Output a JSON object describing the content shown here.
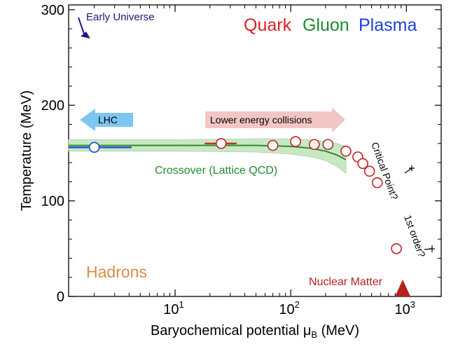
{
  "chart_data": {
    "type": "scatter",
    "title": "",
    "xlabel": "Baryochemical potential",
    "xlabel_symbol": "μ",
    "xlabel_subscript": "B",
    "xlabel_unit": "(MeV)",
    "ylabel": "Temperature (MeV)",
    "xscale": "log",
    "xlim": [
      1.2,
      2000
    ],
    "ylim": [
      0,
      305
    ],
    "x_ticks": [
      {
        "value": 10,
        "base": "10",
        "exp": "1"
      },
      {
        "value": 100,
        "base": "10",
        "exp": "2"
      },
      {
        "value": 1000,
        "base": "10",
        "exp": "3"
      }
    ],
    "y_ticks": [
      {
        "value": 0,
        "label": "0"
      },
      {
        "value": 100,
        "label": "100"
      },
      {
        "value": 200,
        "label": "200"
      },
      {
        "value": 300,
        "label": "300"
      }
    ],
    "colors": {
      "quark": "#dd1f26",
      "gluon": "#1f8a2c",
      "plasma": "#1f3fe0",
      "crossover_line": "#2e8b2e",
      "crossover_band": "#c8e8c4",
      "data_points": "#c42222",
      "lhc_point": "#2a52d6",
      "lhc_arrow": "#7ec6f2",
      "collision_arrow": "#f3c6c6",
      "hadrons": "#d88d45",
      "nuclear_matter": "#b52020",
      "early_universe": "#1a1a7a"
    },
    "crossover_curve": {
      "name": "Crossover (Lattice QCD)",
      "x": [
        1.2,
        10,
        50,
        100,
        150,
        200,
        250,
        300
      ],
      "y": [
        158,
        158,
        158,
        157,
        155,
        152,
        148,
        143
      ],
      "band_halfwidth": [
        6,
        6,
        7,
        8,
        9,
        10,
        12,
        14
      ]
    },
    "lhc_point": {
      "x": 2,
      "y": 156,
      "xerr": [
        1.2,
        4.2
      ]
    },
    "data_points": [
      {
        "x": 25,
        "y": 160,
        "xerr": [
          18,
          34
        ]
      },
      {
        "x": 70,
        "y": 158
      },
      {
        "x": 110,
        "y": 162
      },
      {
        "x": 160,
        "y": 159
      },
      {
        "x": 210,
        "y": 159
      },
      {
        "x": 300,
        "y": 152
      },
      {
        "x": 380,
        "y": 146
      },
      {
        "x": 420,
        "y": 139
      },
      {
        "x": 480,
        "y": 131
      },
      {
        "x": 560,
        "y": 119
      },
      {
        "x": 820,
        "y": 50
      }
    ],
    "nuclear_matter": {
      "x": 930,
      "y": 0
    },
    "annotations": {
      "quark": "Quark",
      "gluon": "Gluon",
      "plasma": "Plasma",
      "early_universe": "Early Universe",
      "lhc": "LHC",
      "lower_energy": "Lower energy collisions",
      "crossover": "Crossover (Lattice QCD)",
      "critical_point": "Critical Point?",
      "first_order": "1st order?",
      "hadrons": "Hadrons",
      "nuclear_matter": "Nuclear Matter"
    }
  }
}
